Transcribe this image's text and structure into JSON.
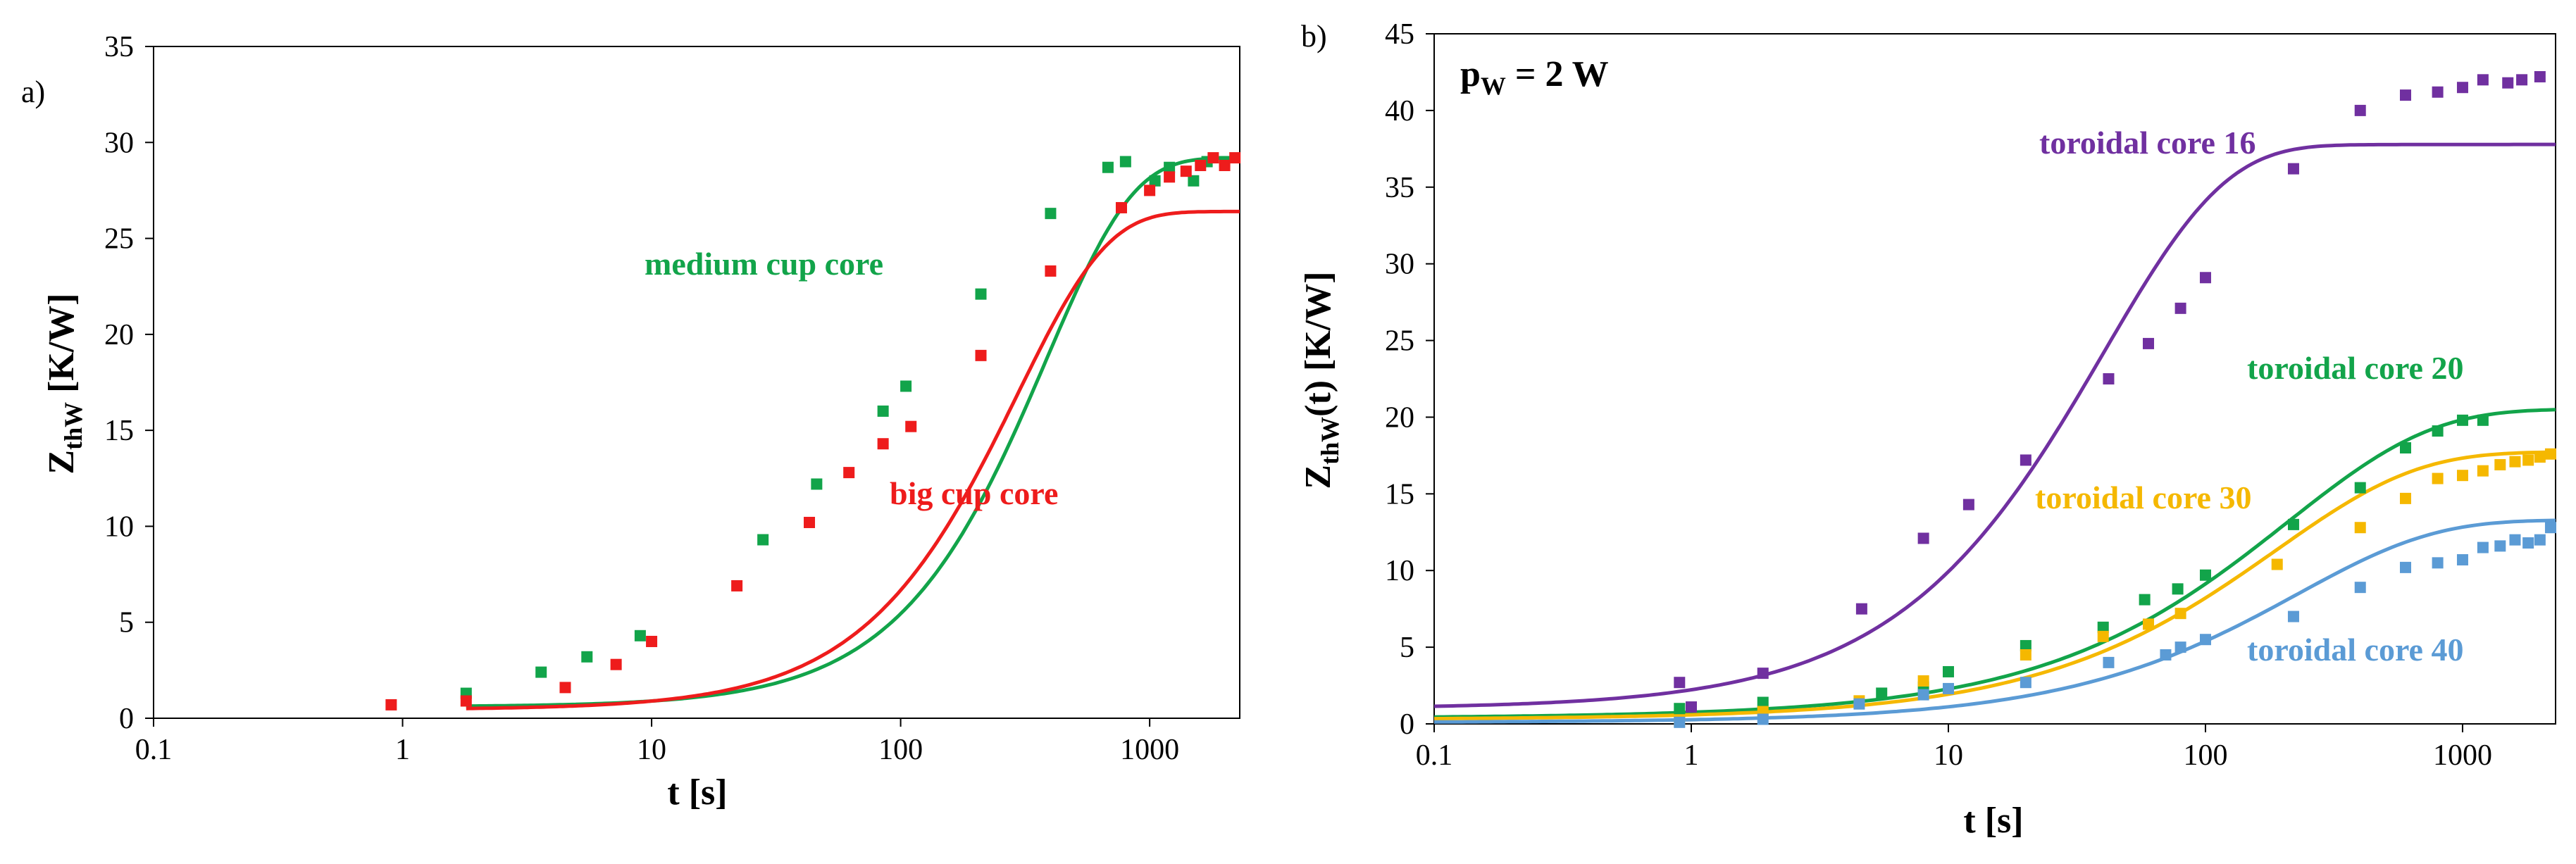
{
  "chart_data": [
    {
      "panel_label": "a)",
      "type": "scatter",
      "xscale": "log",
      "xlim": [
        0.1,
        2300
      ],
      "ylim": [
        0,
        35
      ],
      "xticks": [
        0.1,
        1,
        10,
        100,
        1000
      ],
      "xtick_labels": [
        "0.1",
        "1",
        "10",
        "100",
        "1000"
      ],
      "yticks": [
        0,
        5,
        10,
        15,
        20,
        25,
        30,
        35
      ],
      "ytick_labels": [
        "0",
        "5",
        "10",
        "15",
        "20",
        "25",
        "30",
        "35"
      ],
      "xlabel": "t [s]",
      "ylabel": {
        "main": "Z",
        "sub": "thW",
        "rest": " [K/W]"
      },
      "series": [
        {
          "name": "medium cup core",
          "color": "#12a44a",
          "points": [
            [
              1.8,
              1.3
            ],
            [
              3.6,
              2.4
            ],
            [
              5.5,
              3.2
            ],
            [
              9,
              4.3
            ],
            [
              28,
              9.3
            ],
            [
              46,
              12.2
            ],
            [
              85,
              16
            ],
            [
              105,
              17.3
            ],
            [
              210,
              22.1
            ],
            [
              400,
              26.3
            ],
            [
              680,
              28.7
            ],
            [
              800,
              29
            ],
            [
              1050,
              28
            ],
            [
              1200,
              28.7
            ],
            [
              1500,
              28
            ],
            [
              1700,
              29
            ],
            [
              2000,
              29
            ]
          ],
          "curve": {
            "tmin": 1.8,
            "tmax": 2300,
            "a": 29.2,
            "k": 0.0026,
            "n": 1.25,
            "b": 0.6
          }
        },
        {
          "name": "big cup core",
          "color": "#ee1c1c",
          "points": [
            [
              0.9,
              0.7
            ],
            [
              1.8,
              0.9
            ],
            [
              4.5,
              1.6
            ],
            [
              7.2,
              2.8
            ],
            [
              10,
              4
            ],
            [
              22,
              6.9
            ],
            [
              43,
              10.2
            ],
            [
              62,
              12.8
            ],
            [
              85,
              14.3
            ],
            [
              110,
              15.2
            ],
            [
              210,
              18.9
            ],
            [
              400,
              23.3
            ],
            [
              770,
              26.6
            ],
            [
              1000,
              27.5
            ],
            [
              1200,
              28.2
            ],
            [
              1400,
              28.5
            ],
            [
              1600,
              28.8
            ],
            [
              1800,
              29.2
            ],
            [
              2000,
              28.8
            ],
            [
              2200,
              29.2
            ]
          ],
          "curve": {
            "tmin": 1.8,
            "tmax": 2300,
            "a": 26.4,
            "k": 0.0034,
            "n": 1.2,
            "b": 0.45
          }
        }
      ],
      "annotations": [
        {
          "text": "medium cup core",
          "color": "#12a44a"
        },
        {
          "text": "big cup core",
          "color": "#ee1c1c"
        }
      ]
    },
    {
      "panel_label": "b)",
      "type": "scatter",
      "xscale": "log",
      "xlim": [
        0.1,
        2300
      ],
      "ylim": [
        0,
        45
      ],
      "xticks": [
        0.1,
        1,
        10,
        100,
        1000
      ],
      "xtick_labels": [
        "0.1",
        "1",
        "10",
        "100",
        "1000"
      ],
      "yticks": [
        0,
        5,
        10,
        15,
        20,
        25,
        30,
        35,
        40,
        45
      ],
      "ytick_labels": [
        "0",
        "5",
        "10",
        "15",
        "20",
        "25",
        "30",
        "35",
        "40",
        "45"
      ],
      "xlabel": "t [s]",
      "ylabel": {
        "main": "Z",
        "sub": "thW",
        "rest": "(t) [K/W]"
      },
      "inset_label": {
        "main": "p",
        "sub": "W",
        "rest": " = 2 W"
      },
      "series": [
        {
          "name": "toroidal core 16",
          "color": "#7030a0",
          "points": [
            [
              0.9,
              2.7
            ],
            [
              1,
              1.1
            ],
            [
              1.9,
              3.3
            ],
            [
              4.6,
              7.5
            ],
            [
              8,
              12.1
            ],
            [
              12,
              14.3
            ],
            [
              20,
              17.2
            ],
            [
              42,
              22.5
            ],
            [
              60,
              24.8
            ],
            [
              80,
              27.1
            ],
            [
              100,
              29.1
            ],
            [
              220,
              36.2
            ],
            [
              400,
              40
            ],
            [
              600,
              41
            ],
            [
              800,
              41.2
            ],
            [
              1000,
              41.5
            ],
            [
              1200,
              42
            ],
            [
              1500,
              41.8
            ],
            [
              1700,
              42
            ],
            [
              2000,
              42.2
            ]
          ],
          "curve": {
            "tmin": 0.1,
            "tmax": 2300,
            "a": 37.7,
            "k": 0.0248,
            "n": 0.92,
            "b": 1.0,
            "growth": 0.02
          }
        },
        {
          "name": "toroidal core 20",
          "color": "#12a44a",
          "points": [
            [
              0.9,
              1
            ],
            [
              1.9,
              1.4
            ],
            [
              5.5,
              2
            ],
            [
              8,
              2.4
            ],
            [
              10,
              3.4
            ],
            [
              20,
              5.1
            ],
            [
              40,
              6.3
            ],
            [
              58,
              8.1
            ],
            [
              78,
              8.8
            ],
            [
              100,
              9.7
            ],
            [
              220,
              13
            ],
            [
              400,
              15.4
            ],
            [
              600,
              18
            ],
            [
              800,
              19.1
            ],
            [
              1000,
              19.8
            ],
            [
              1200,
              19.8
            ]
          ],
          "curve": {
            "tmin": 0.1,
            "tmax": 2300,
            "a": 20.3,
            "k": 0.0048,
            "n": 0.78,
            "b": 0.4,
            "growth": 0.05
          }
        },
        {
          "name": "toroidal core 30",
          "color": "#f5b800",
          "points": [
            [
              0.9,
              0.2
            ],
            [
              1.9,
              0.8
            ],
            [
              4.5,
              1.5
            ],
            [
              8,
              2.8
            ],
            [
              20,
              4.5
            ],
            [
              40,
              5.7
            ],
            [
              60,
              6.5
            ],
            [
              80,
              7.2
            ],
            [
              190,
              10.4
            ],
            [
              400,
              12.8
            ],
            [
              600,
              14.7
            ],
            [
              800,
              16
            ],
            [
              1000,
              16.2
            ],
            [
              1200,
              16.5
            ],
            [
              1400,
              16.9
            ],
            [
              1600,
              17.1
            ],
            [
              1800,
              17.2
            ],
            [
              2000,
              17.4
            ],
            [
              2200,
              17.6
            ]
          ],
          "curve": {
            "tmin": 0.1,
            "tmax": 2300,
            "a": 17.6,
            "k": 0.0053,
            "n": 0.8,
            "b": 0.3,
            "growth": 0.03
          }
        },
        {
          "name": "toroidal core 40",
          "color": "#5b9bd5",
          "points": [
            [
              0.9,
              0.1
            ],
            [
              1.9,
              0.3
            ],
            [
              4.5,
              1.3
            ],
            [
              8,
              1.9
            ],
            [
              10,
              2.3
            ],
            [
              20,
              2.7
            ],
            [
              42,
              4
            ],
            [
              70,
              4.5
            ],
            [
              80,
              5
            ],
            [
              100,
              5.5
            ],
            [
              220,
              7
            ],
            [
              400,
              8.9
            ],
            [
              600,
              10.2
            ],
            [
              800,
              10.5
            ],
            [
              1000,
              10.7
            ],
            [
              1200,
              11.5
            ],
            [
              1400,
              11.6
            ],
            [
              1600,
              12
            ],
            [
              1800,
              11.8
            ],
            [
              2000,
              12
            ],
            [
              2200,
              12.8
            ]
          ],
          "curve": {
            "tmin": 0.1,
            "tmax": 2300,
            "a": 13.2,
            "k": 0.0044,
            "n": 0.82,
            "b": 0.1,
            "growth": 0.02
          }
        }
      ],
      "annotations": [
        {
          "text": "toroidal core 16",
          "color": "#7030a0"
        },
        {
          "text": "toroidal core 20",
          "color": "#12a44a"
        },
        {
          "text": "toroidal core 30",
          "color": "#f5b800"
        },
        {
          "text": "toroidal core 40",
          "color": "#5b9bd5"
        }
      ]
    }
  ]
}
